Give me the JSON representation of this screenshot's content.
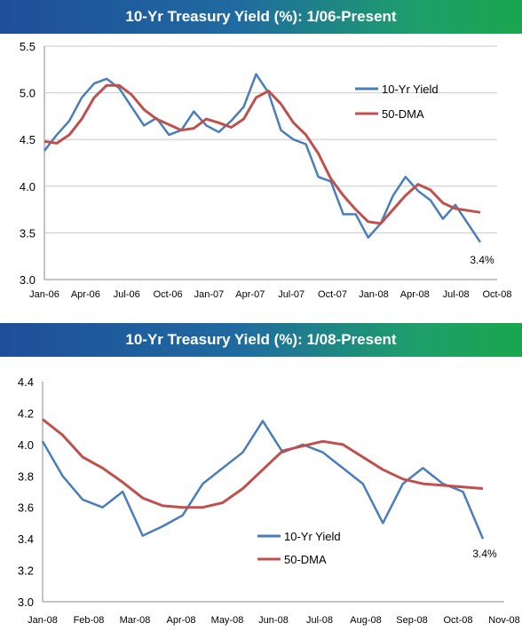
{
  "chart_data": [
    {
      "type": "line",
      "title": "10-Yr Treasury Yield (%): 1/06-Present",
      "ylim": [
        3.0,
        5.5
      ],
      "yticks": [
        "3.0",
        "3.5",
        "4.0",
        "4.5",
        "5.0",
        "5.5"
      ],
      "xticks": [
        "Jan-06",
        "Apr-06",
        "Jul-06",
        "Oct-06",
        "Jan-07",
        "Apr-07",
        "Jul-07",
        "Oct-07",
        "Jan-08",
        "Apr-08",
        "Jul-08",
        "Oct-08"
      ],
      "grid": true,
      "legend_position": "top-right",
      "annotation": "3.4%",
      "series": [
        {
          "name": "10-Yr Yield",
          "color": "#4a7ebb",
          "points": [
            [
              "Jan-06",
              4.38
            ],
            [
              "Feb-06",
              4.55
            ],
            [
              "Mar-06",
              4.7
            ],
            [
              "Apr-06",
              4.95
            ],
            [
              "May-06",
              5.1
            ],
            [
              "Jun-06",
              5.15
            ],
            [
              "Jul-06",
              5.05
            ],
            [
              "Aug-06",
              4.85
            ],
            [
              "Sep-06",
              4.65
            ],
            [
              "Oct-06",
              4.73
            ],
            [
              "Nov-06",
              4.55
            ],
            [
              "Dec-06",
              4.6
            ],
            [
              "Jan-07",
              4.8
            ],
            [
              "Feb-07",
              4.65
            ],
            [
              "Mar-07",
              4.58
            ],
            [
              "Apr-07",
              4.7
            ],
            [
              "May-07",
              4.85
            ],
            [
              "Jun-07",
              5.2
            ],
            [
              "Jul-07",
              5.0
            ],
            [
              "Aug-07",
              4.6
            ],
            [
              "Sep-07",
              4.5
            ],
            [
              "Oct-07",
              4.45
            ],
            [
              "Nov-07",
              4.1
            ],
            [
              "Dec-07",
              4.05
            ],
            [
              "Jan-08",
              3.7
            ],
            [
              "Feb-08",
              3.7
            ],
            [
              "Mar-08",
              3.45
            ],
            [
              "Apr-08",
              3.6
            ],
            [
              "May-08",
              3.9
            ],
            [
              "Jun-08",
              4.1
            ],
            [
              "Jul-08",
              3.95
            ],
            [
              "Aug-08",
              3.85
            ],
            [
              "Sep-08",
              3.65
            ],
            [
              "Oct-08",
              3.8
            ],
            [
              "Nov-08",
              3.6
            ],
            [
              "end",
              3.4
            ]
          ]
        },
        {
          "name": "50-DMA",
          "color": "#c0504d",
          "points": [
            [
              "Jan-06",
              4.48
            ],
            [
              "Feb-06",
              4.46
            ],
            [
              "Mar-06",
              4.55
            ],
            [
              "Apr-06",
              4.72
            ],
            [
              "May-06",
              4.95
            ],
            [
              "Jun-06",
              5.08
            ],
            [
              "Jul-06",
              5.08
            ],
            [
              "Aug-06",
              4.98
            ],
            [
              "Sep-06",
              4.82
            ],
            [
              "Oct-06",
              4.72
            ],
            [
              "Nov-06",
              4.66
            ],
            [
              "Dec-06",
              4.6
            ],
            [
              "Jan-07",
              4.62
            ],
            [
              "Feb-07",
              4.72
            ],
            [
              "Mar-07",
              4.68
            ],
            [
              "Apr-07",
              4.63
            ],
            [
              "May-07",
              4.72
            ],
            [
              "Jun-07",
              4.95
            ],
            [
              "Jul-07",
              5.02
            ],
            [
              "Aug-07",
              4.88
            ],
            [
              "Sep-07",
              4.68
            ],
            [
              "Oct-07",
              4.55
            ],
            [
              "Nov-07",
              4.35
            ],
            [
              "Dec-07",
              4.08
            ],
            [
              "Jan-08",
              3.9
            ],
            [
              "Feb-08",
              3.75
            ],
            [
              "Mar-08",
              3.62
            ],
            [
              "Apr-08",
              3.6
            ],
            [
              "May-08",
              3.75
            ],
            [
              "Jun-08",
              3.9
            ],
            [
              "Jul-08",
              4.02
            ],
            [
              "Aug-08",
              3.96
            ],
            [
              "Sep-08",
              3.82
            ],
            [
              "Oct-08",
              3.76
            ],
            [
              "Nov-08",
              3.74
            ],
            [
              "end",
              3.72
            ]
          ]
        }
      ]
    },
    {
      "type": "line",
      "title": "10-Yr Treasury Yield (%): 1/08-Present",
      "ylim": [
        3.0,
        4.4
      ],
      "yticks": [
        "3.0",
        "3.2",
        "3.4",
        "3.6",
        "3.8",
        "4.0",
        "4.2",
        "4.4"
      ],
      "xticks": [
        "Jan-08",
        "Feb-08",
        "Mar-08",
        "Apr-08",
        "May-08",
        "Jun-08",
        "Jul-08",
        "Aug-08",
        "Sep-08",
        "Oct-08",
        "Nov-08"
      ],
      "grid": false,
      "legend_position": "bottom-right",
      "annotation": "3.4%",
      "series": [
        {
          "name": "10-Yr Yield",
          "color": "#4a7ebb",
          "points": [
            [
              "Jan-08",
              4.02
            ],
            [
              "Jan-08 mid",
              3.8
            ],
            [
              "Feb-08",
              3.65
            ],
            [
              "Feb-08 mid",
              3.6
            ],
            [
              "Mar-08",
              3.7
            ],
            [
              "Mar-08 mid",
              3.42
            ],
            [
              "Apr-08",
              3.48
            ],
            [
              "Apr-08 mid",
              3.55
            ],
            [
              "May-08",
              3.75
            ],
            [
              "May-08 mid",
              3.85
            ],
            [
              "Jun-08",
              3.95
            ],
            [
              "Jun-08 mid",
              4.15
            ],
            [
              "Jul-08",
              3.95
            ],
            [
              "Jul-08 mid",
              4.0
            ],
            [
              "Aug-08",
              3.95
            ],
            [
              "Aug-08 mid",
              3.85
            ],
            [
              "Sep-08",
              3.75
            ],
            [
              "Sep-08 mid",
              3.5
            ],
            [
              "Oct-08",
              3.75
            ],
            [
              "Oct-08 mid",
              3.85
            ],
            [
              "Nov-08",
              3.75
            ],
            [
              "Nov-08 mid",
              3.7
            ],
            [
              "end",
              3.4
            ]
          ]
        },
        {
          "name": "50-DMA",
          "color": "#c0504d",
          "points": [
            [
              "Jan-08",
              4.16
            ],
            [
              "Jan-08 mid",
              4.06
            ],
            [
              "Feb-08",
              3.92
            ],
            [
              "Feb-08 mid",
              3.85
            ],
            [
              "Mar-08",
              3.76
            ],
            [
              "Mar-08 mid",
              3.66
            ],
            [
              "Apr-08",
              3.61
            ],
            [
              "Apr-08 mid",
              3.6
            ],
            [
              "May-08",
              3.6
            ],
            [
              "May-08 mid",
              3.63
            ],
            [
              "Jun-08",
              3.72
            ],
            [
              "Jun-08 mid",
              3.84
            ],
            [
              "Jul-08",
              3.96
            ],
            [
              "Jul-08 mid",
              3.99
            ],
            [
              "Aug-08",
              4.02
            ],
            [
              "Aug-08 mid",
              4.0
            ],
            [
              "Sep-08",
              3.92
            ],
            [
              "Sep-08 mid",
              3.84
            ],
            [
              "Oct-08",
              3.78
            ],
            [
              "Oct-08 mid",
              3.75
            ],
            [
              "Nov-08",
              3.74
            ],
            [
              "Nov-08 mid",
              3.73
            ],
            [
              "end",
              3.72
            ]
          ]
        }
      ]
    }
  ]
}
